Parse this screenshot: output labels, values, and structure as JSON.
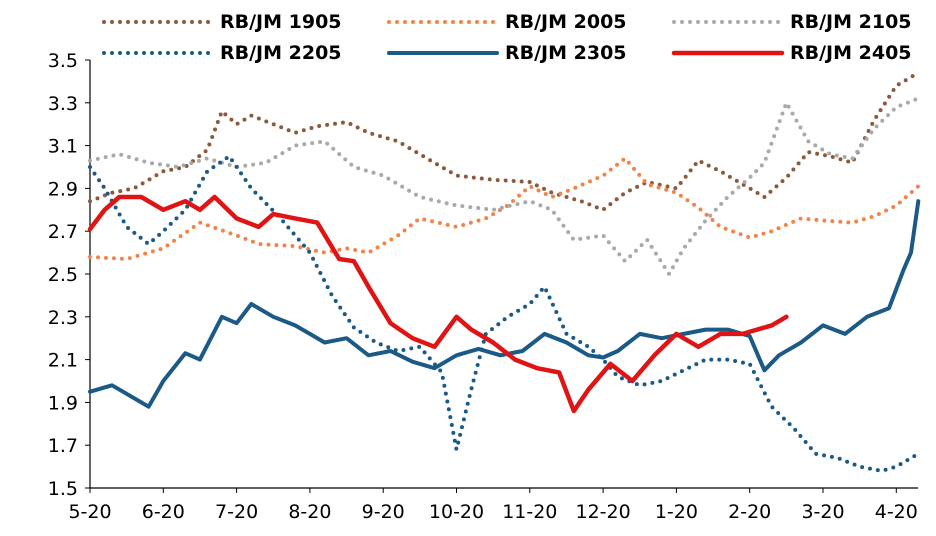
{
  "chart_data": {
    "type": "line",
    "title": "",
    "xlabel": "",
    "ylabel": "",
    "x_categories": [
      "5-20",
      "6-20",
      "7-20",
      "8-20",
      "9-20",
      "10-20",
      "11-20",
      "12-20",
      "1-20",
      "2-20",
      "3-20",
      "4-20"
    ],
    "ylim": [
      1.5,
      3.5
    ],
    "yticks": [
      1.5,
      1.7,
      1.9,
      2.1,
      2.3,
      2.5,
      2.7,
      2.9,
      3.1,
      3.3,
      3.5
    ],
    "ytick_labels": [
      "1.5",
      "1.7",
      "1.9",
      "2.1",
      "2.3",
      "2.5",
      "2.7",
      "2.9",
      "3.1",
      "3.3",
      "3.5"
    ],
    "grid": false,
    "legend_position": "top",
    "x_note": "x values are fractional month index: 0 = 5-20, 1 = 6-20, ..., 11 = 4-20",
    "series": [
      {
        "name": "RB/JM 1905",
        "color": "#8B5A3C",
        "style": "dotted",
        "points": [
          [
            0,
            2.84
          ],
          [
            0.3,
            2.88
          ],
          [
            0.6,
            2.9
          ],
          [
            1.0,
            2.98
          ],
          [
            1.3,
            3.0
          ],
          [
            1.6,
            3.08
          ],
          [
            1.8,
            3.26
          ],
          [
            2.0,
            3.2
          ],
          [
            2.2,
            3.24
          ],
          [
            2.5,
            3.2
          ],
          [
            2.8,
            3.16
          ],
          [
            3.1,
            3.19
          ],
          [
            3.5,
            3.21
          ],
          [
            3.8,
            3.16
          ],
          [
            4.2,
            3.12
          ],
          [
            4.5,
            3.06
          ],
          [
            5.0,
            2.96
          ],
          [
            5.5,
            2.94
          ],
          [
            6.0,
            2.93
          ],
          [
            6.3,
            2.88
          ],
          [
            6.7,
            2.84
          ],
          [
            7.0,
            2.8
          ],
          [
            7.3,
            2.88
          ],
          [
            7.6,
            2.93
          ],
          [
            8.0,
            2.9
          ],
          [
            8.3,
            3.03
          ],
          [
            8.6,
            2.98
          ],
          [
            8.9,
            2.92
          ],
          [
            9.2,
            2.86
          ],
          [
            9.5,
            2.95
          ],
          [
            9.8,
            3.07
          ],
          [
            10.1,
            3.05
          ],
          [
            10.4,
            3.02
          ],
          [
            10.7,
            3.22
          ],
          [
            11.0,
            3.38
          ],
          [
            11.3,
            3.44
          ]
        ]
      },
      {
        "name": "RB/JM 2005",
        "color": "#F0854A",
        "style": "dotted",
        "points": [
          [
            0,
            2.58
          ],
          [
            0.5,
            2.57
          ],
          [
            1.0,
            2.62
          ],
          [
            1.5,
            2.74
          ],
          [
            2.0,
            2.68
          ],
          [
            2.3,
            2.64
          ],
          [
            2.8,
            2.63
          ],
          [
            3.2,
            2.6
          ],
          [
            3.5,
            2.62
          ],
          [
            3.8,
            2.6
          ],
          [
            4.2,
            2.68
          ],
          [
            4.5,
            2.76
          ],
          [
            5.0,
            2.72
          ],
          [
            5.4,
            2.76
          ],
          [
            5.7,
            2.82
          ],
          [
            6.0,
            2.91
          ],
          [
            6.3,
            2.86
          ],
          [
            6.6,
            2.9
          ],
          [
            7.0,
            2.96
          ],
          [
            7.3,
            3.04
          ],
          [
            7.6,
            2.92
          ],
          [
            8.0,
            2.88
          ],
          [
            8.3,
            2.81
          ],
          [
            8.6,
            2.72
          ],
          [
            9.0,
            2.67
          ],
          [
            9.3,
            2.7
          ],
          [
            9.7,
            2.76
          ],
          [
            10.0,
            2.75
          ],
          [
            10.4,
            2.74
          ],
          [
            10.7,
            2.77
          ],
          [
            11.0,
            2.82
          ],
          [
            11.3,
            2.91
          ]
        ]
      },
      {
        "name": "RB/JM 2105",
        "color": "#A9A9A9",
        "style": "dotted",
        "points": [
          [
            0,
            3.03
          ],
          [
            0.4,
            3.06
          ],
          [
            0.8,
            3.02
          ],
          [
            1.2,
            3.0
          ],
          [
            1.6,
            3.04
          ],
          [
            2.0,
            3.0
          ],
          [
            2.4,
            3.02
          ],
          [
            2.8,
            3.1
          ],
          [
            3.2,
            3.12
          ],
          [
            3.6,
            3.0
          ],
          [
            4.0,
            2.96
          ],
          [
            4.5,
            2.86
          ],
          [
            5.0,
            2.82
          ],
          [
            5.5,
            2.8
          ],
          [
            6.0,
            2.84
          ],
          [
            6.3,
            2.8
          ],
          [
            6.6,
            2.66
          ],
          [
            7.0,
            2.68
          ],
          [
            7.3,
            2.56
          ],
          [
            7.6,
            2.66
          ],
          [
            7.9,
            2.5
          ],
          [
            8.1,
            2.62
          ],
          [
            8.4,
            2.75
          ],
          [
            8.7,
            2.86
          ],
          [
            9.0,
            2.95
          ],
          [
            9.2,
            3.02
          ],
          [
            9.5,
            3.3
          ],
          [
            9.8,
            3.12
          ],
          [
            10.1,
            3.06
          ],
          [
            10.4,
            3.04
          ],
          [
            10.7,
            3.18
          ],
          [
            11.0,
            3.28
          ],
          [
            11.3,
            3.32
          ]
        ]
      },
      {
        "name": "RB/JM 2205",
        "color": "#1B5A86",
        "style": "dotted",
        "points": [
          [
            0,
            3.0
          ],
          [
            0.2,
            2.9
          ],
          [
            0.5,
            2.72
          ],
          [
            0.8,
            2.64
          ],
          [
            1.0,
            2.7
          ],
          [
            1.3,
            2.8
          ],
          [
            1.6,
            2.98
          ],
          [
            1.9,
            3.05
          ],
          [
            2.2,
            2.9
          ],
          [
            2.6,
            2.76
          ],
          [
            3.0,
            2.6
          ],
          [
            3.3,
            2.4
          ],
          [
            3.6,
            2.25
          ],
          [
            3.9,
            2.18
          ],
          [
            4.2,
            2.14
          ],
          [
            4.5,
            2.16
          ],
          [
            4.8,
            2.04
          ],
          [
            5.0,
            1.68
          ],
          [
            5.2,
            1.96
          ],
          [
            5.4,
            2.22
          ],
          [
            5.7,
            2.3
          ],
          [
            6.0,
            2.36
          ],
          [
            6.2,
            2.44
          ],
          [
            6.5,
            2.22
          ],
          [
            6.8,
            2.16
          ],
          [
            7.0,
            2.1
          ],
          [
            7.2,
            2.02
          ],
          [
            7.5,
            1.98
          ],
          [
            7.8,
            2.0
          ],
          [
            8.1,
            2.05
          ],
          [
            8.4,
            2.1
          ],
          [
            8.7,
            2.1
          ],
          [
            9.0,
            2.08
          ],
          [
            9.3,
            1.88
          ],
          [
            9.6,
            1.78
          ],
          [
            9.9,
            1.66
          ],
          [
            10.2,
            1.64
          ],
          [
            10.5,
            1.6
          ],
          [
            10.8,
            1.58
          ],
          [
            11.0,
            1.6
          ],
          [
            11.3,
            1.66
          ]
        ]
      },
      {
        "name": "RB/JM 2305",
        "color": "#1B5A86",
        "style": "solid",
        "points": [
          [
            0,
            1.95
          ],
          [
            0.3,
            1.98
          ],
          [
            0.6,
            1.92
          ],
          [
            0.8,
            1.88
          ],
          [
            1.0,
            2.0
          ],
          [
            1.3,
            2.13
          ],
          [
            1.5,
            2.1
          ],
          [
            1.8,
            2.3
          ],
          [
            2.0,
            2.27
          ],
          [
            2.2,
            2.36
          ],
          [
            2.5,
            2.3
          ],
          [
            2.8,
            2.26
          ],
          [
            3.0,
            2.22
          ],
          [
            3.2,
            2.18
          ],
          [
            3.5,
            2.2
          ],
          [
            3.8,
            2.12
          ],
          [
            4.1,
            2.14
          ],
          [
            4.4,
            2.09
          ],
          [
            4.7,
            2.06
          ],
          [
            5.0,
            2.12
          ],
          [
            5.3,
            2.15
          ],
          [
            5.6,
            2.12
          ],
          [
            5.9,
            2.14
          ],
          [
            6.2,
            2.22
          ],
          [
            6.5,
            2.18
          ],
          [
            6.8,
            2.12
          ],
          [
            7.0,
            2.11
          ],
          [
            7.2,
            2.14
          ],
          [
            7.5,
            2.22
          ],
          [
            7.8,
            2.2
          ],
          [
            8.1,
            2.22
          ],
          [
            8.4,
            2.24
          ],
          [
            8.7,
            2.24
          ],
          [
            9.0,
            2.21
          ],
          [
            9.2,
            2.05
          ],
          [
            9.4,
            2.12
          ],
          [
            9.7,
            2.18
          ],
          [
            10.0,
            2.26
          ],
          [
            10.3,
            2.22
          ],
          [
            10.6,
            2.3
          ],
          [
            10.9,
            2.34
          ],
          [
            11.1,
            2.52
          ],
          [
            11.2,
            2.6
          ],
          [
            11.3,
            2.84
          ]
        ]
      },
      {
        "name": "RB/JM 2405",
        "color": "#E01414",
        "style": "solid",
        "points": [
          [
            0,
            2.71
          ],
          [
            0.2,
            2.8
          ],
          [
            0.4,
            2.86
          ],
          [
            0.7,
            2.86
          ],
          [
            1.0,
            2.8
          ],
          [
            1.3,
            2.84
          ],
          [
            1.5,
            2.8
          ],
          [
            1.7,
            2.86
          ],
          [
            2.0,
            2.76
          ],
          [
            2.3,
            2.72
          ],
          [
            2.5,
            2.78
          ],
          [
            2.8,
            2.76
          ],
          [
            3.1,
            2.74
          ],
          [
            3.4,
            2.57
          ],
          [
            3.6,
            2.56
          ],
          [
            3.8,
            2.44
          ],
          [
            4.1,
            2.27
          ],
          [
            4.4,
            2.2
          ],
          [
            4.7,
            2.16
          ],
          [
            5.0,
            2.3
          ],
          [
            5.2,
            2.24
          ],
          [
            5.5,
            2.18
          ],
          [
            5.8,
            2.1
          ],
          [
            6.1,
            2.06
          ],
          [
            6.4,
            2.04
          ],
          [
            6.6,
            1.86
          ],
          [
            6.8,
            1.96
          ],
          [
            7.1,
            2.08
          ],
          [
            7.4,
            2.0
          ],
          [
            7.7,
            2.12
          ],
          [
            8.0,
            2.22
          ],
          [
            8.3,
            2.16
          ],
          [
            8.6,
            2.22
          ],
          [
            8.9,
            2.22
          ],
          [
            9.1,
            2.24
          ],
          [
            9.3,
            2.26
          ],
          [
            9.5,
            2.3
          ]
        ]
      }
    ]
  }
}
